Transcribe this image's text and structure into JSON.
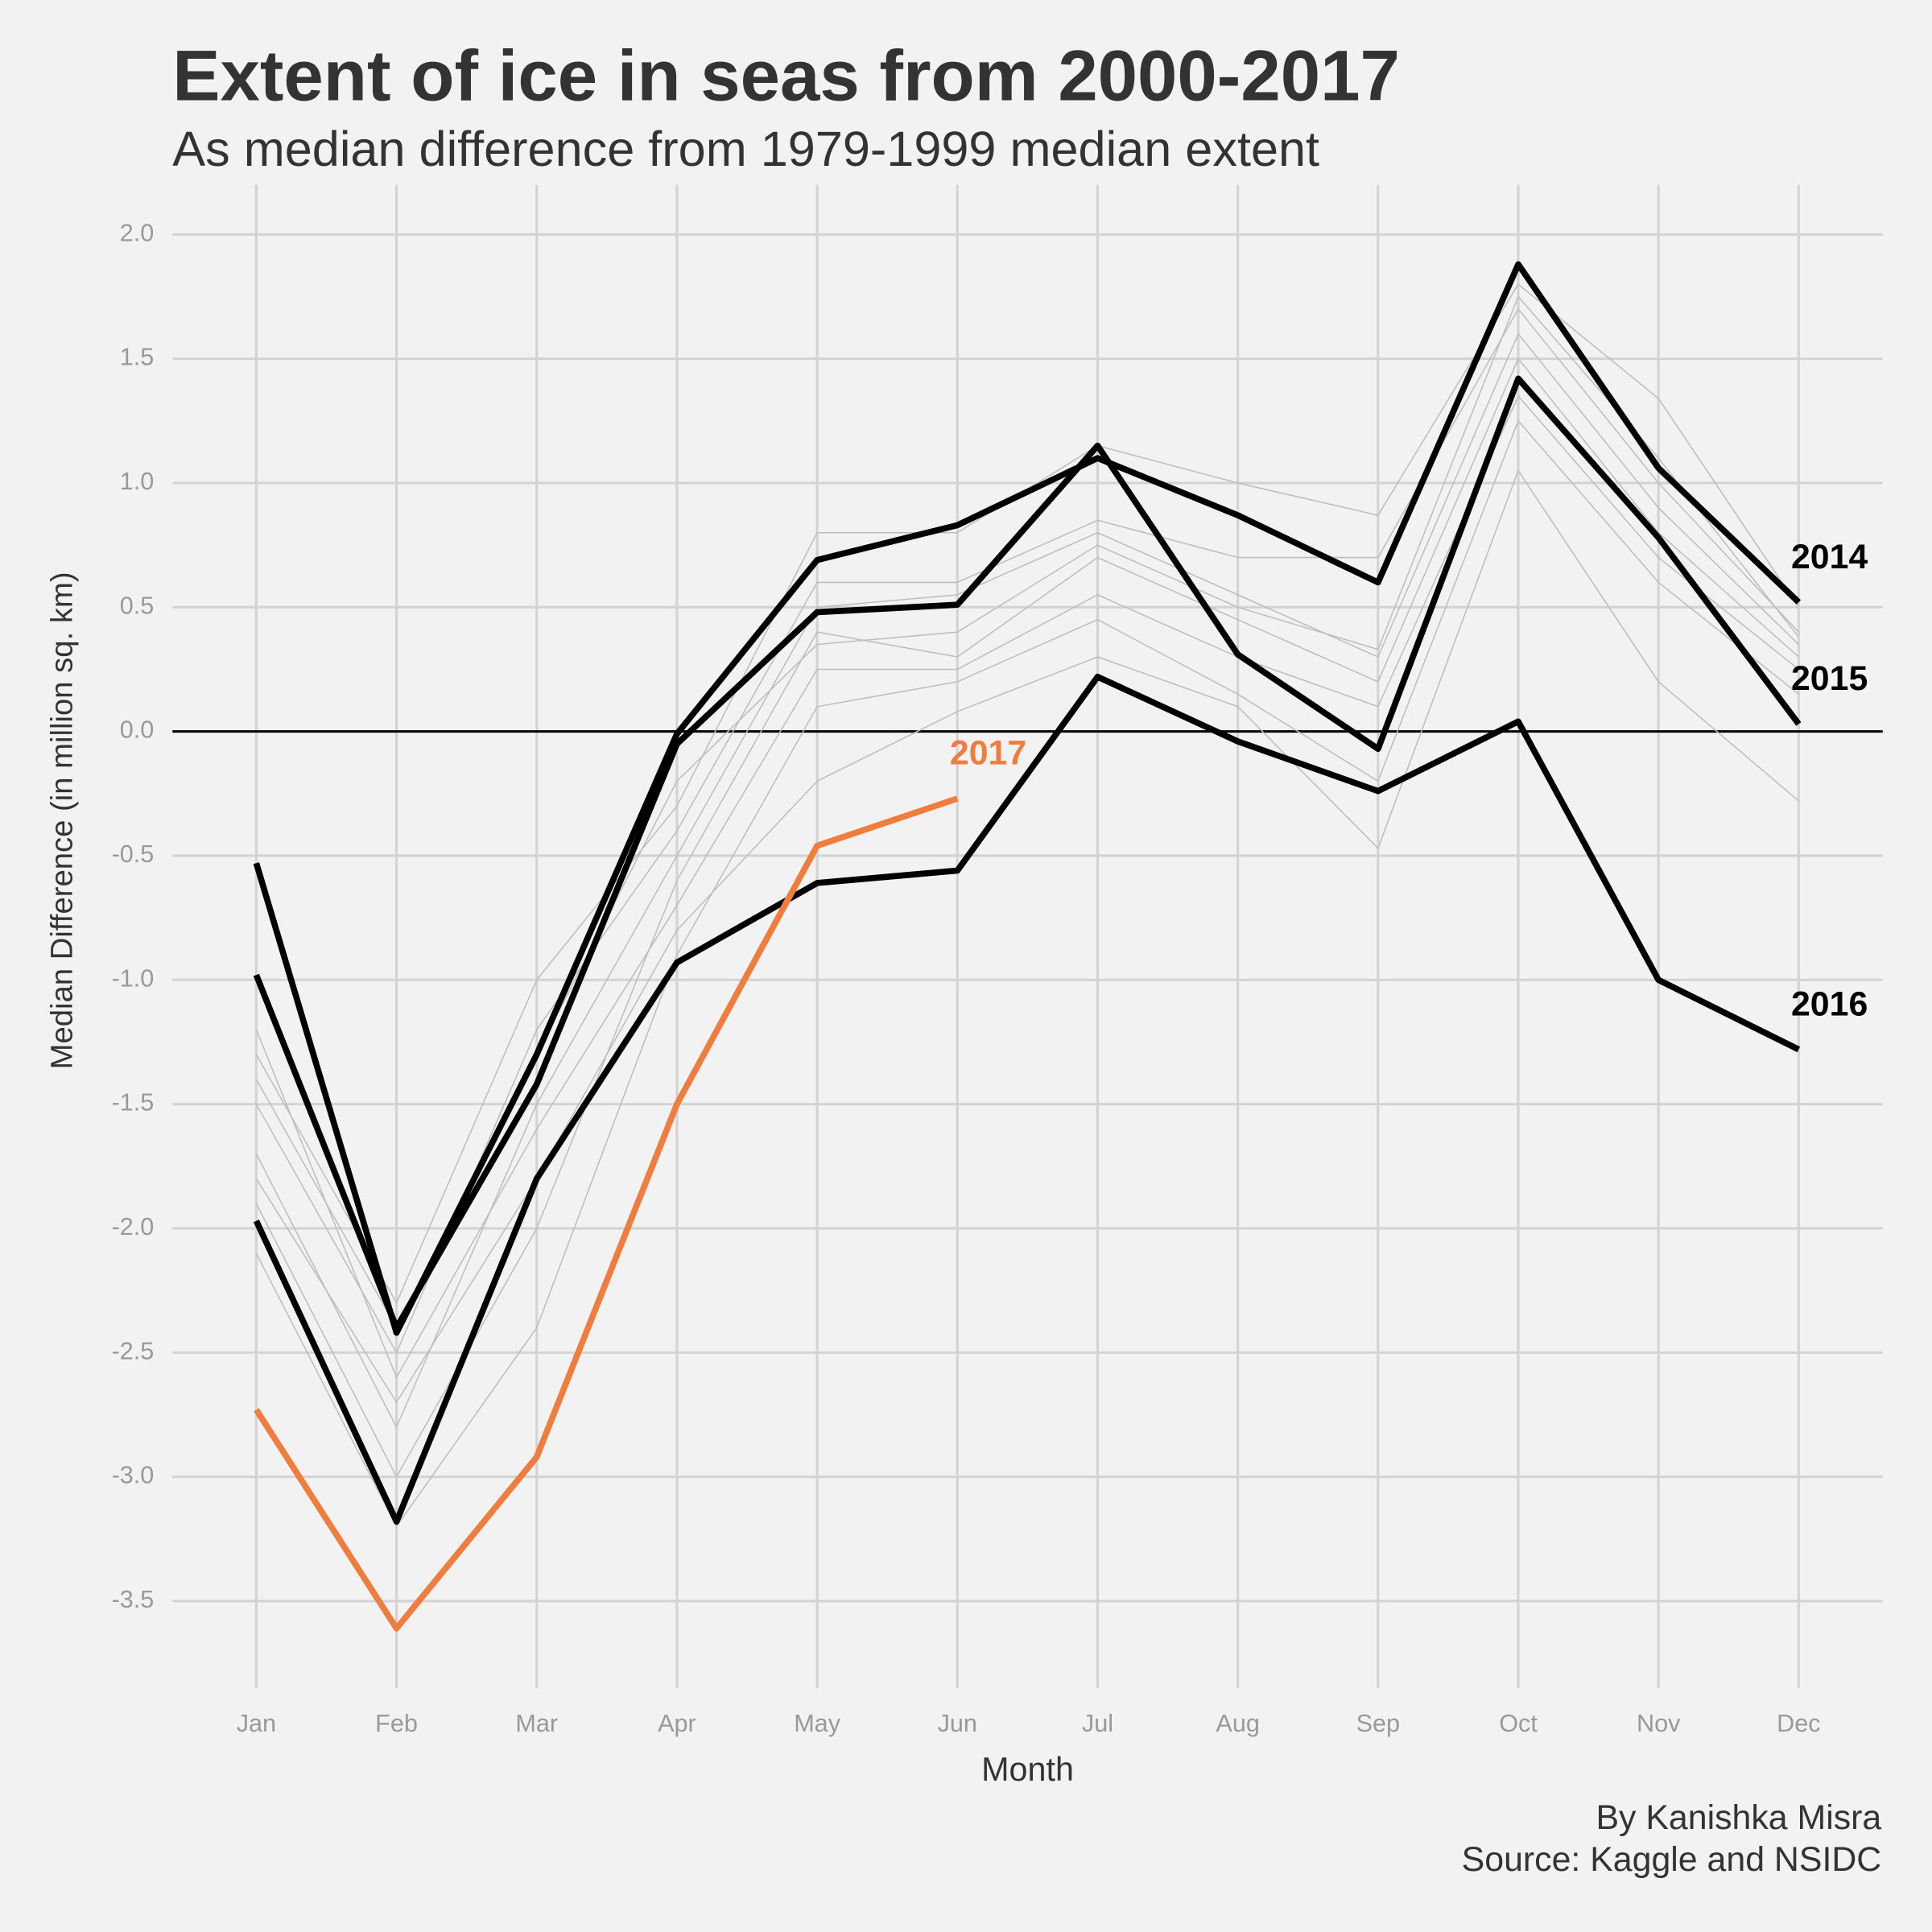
{
  "chart_data": {
    "type": "line",
    "title": "Extent of ice in seas from 2000-2017",
    "subtitle": "As median difference from 1979-1999 median extent",
    "x_label": "Month",
    "y_label": "Median Difference (in million sq. km)",
    "caption": [
      "By Kanishka Misra",
      "Source: Kaggle and NSIDC"
    ],
    "categories": [
      "Jan",
      "Feb",
      "Mar",
      "Apr",
      "May",
      "Jun",
      "Jul",
      "Aug",
      "Sep",
      "Oct",
      "Nov",
      "Dec"
    ],
    "ylim": [
      -3.85,
      2.2
    ],
    "yticks": [
      {
        "value": 2,
        "label": "2.0"
      },
      1.5,
      {
        "value": 1,
        "label": "1.0"
      },
      0.5,
      {
        "value": 0,
        "label": "0.0"
      },
      -0.5,
      {
        "value": -1,
        "label": "-1.0"
      },
      -1.5,
      {
        "value": -2,
        "label": "-2.0"
      },
      -2.5,
      {
        "value": -3,
        "label": "-3.0"
      },
      -3.5
    ],
    "grid": true,
    "hline": 0,
    "series": [
      {
        "color": "#bdbdbd",
        "values": [
          -1.3,
          -2.3,
          -1.0,
          -0.3,
          0.8,
          0.8,
          1.15,
          1.0,
          0.87,
          1.8,
          1.34,
          0.5
        ]
      },
      {
        "color": "#bdbdbd",
        "values": [
          -1.5,
          -2.5,
          -1.2,
          -0.4,
          0.6,
          0.6,
          0.85,
          0.7,
          0.7,
          1.7,
          1.0,
          0.4
        ]
      },
      {
        "color": "#bdbdbd",
        "values": [
          -1.7,
          -2.8,
          -1.5,
          -0.5,
          0.5,
          0.55,
          0.8,
          0.55,
          0.3,
          1.6,
          0.9,
          0.35
        ]
      },
      {
        "color": "#bdbdbd",
        "values": [
          -1.9,
          -3.0,
          -2.0,
          -0.6,
          0.4,
          0.3,
          0.7,
          0.45,
          0.2,
          1.5,
          0.8,
          0.3
        ]
      },
      {
        "color": "#bdbdbd",
        "values": [
          -1.2,
          -2.6,
          -1.6,
          -0.7,
          0.25,
          0.25,
          0.55,
          0.3,
          0.1,
          1.35,
          0.7,
          0.25
        ]
      },
      {
        "color": "#bdbdbd",
        "values": [
          -2.1,
          -3.2,
          -2.4,
          -0.9,
          0.1,
          0.2,
          0.45,
          0.15,
          -0.2,
          1.25,
          0.6,
          0.15
        ]
      },
      {
        "color": "#bdbdbd",
        "values": [
          -1.8,
          -2.7,
          -1.8,
          -0.8,
          -0.2,
          0.08,
          0.3,
          0.1,
          -0.47,
          1.05,
          0.2,
          -0.28
        ]
      },
      {
        "color": "#bdbdbd",
        "values": [
          -1.4,
          -2.4,
          -1.3,
          -0.2,
          0.35,
          0.4,
          0.75,
          0.5,
          0.33,
          1.75,
          1.1,
          0.38
        ]
      },
      {
        "name": "2014",
        "color": "#000000",
        "values": [
          -0.53,
          -2.42,
          -1.3,
          -0.01,
          0.69,
          0.83,
          1.1,
          0.87,
          0.6,
          1.88,
          1.06,
          0.52
        ]
      },
      {
        "name": "2015",
        "color": "#000000",
        "values": [
          -0.98,
          -2.4,
          -1.42,
          -0.05,
          0.48,
          0.51,
          1.15,
          0.31,
          -0.07,
          1.42,
          0.78,
          0.03
        ]
      },
      {
        "name": "2016",
        "color": "#000000",
        "values": [
          -1.97,
          -3.18,
          -1.8,
          -0.93,
          -0.61,
          -0.56,
          0.22,
          -0.04,
          -0.24,
          0.04,
          -1.0,
          -1.28
        ]
      },
      {
        "name": "2017",
        "color": "#ee7d3e",
        "values": [
          -2.73,
          -3.61,
          -2.92,
          -1.5,
          -0.46,
          -0.27,
          null,
          null,
          null,
          null,
          null,
          null
        ]
      }
    ]
  }
}
